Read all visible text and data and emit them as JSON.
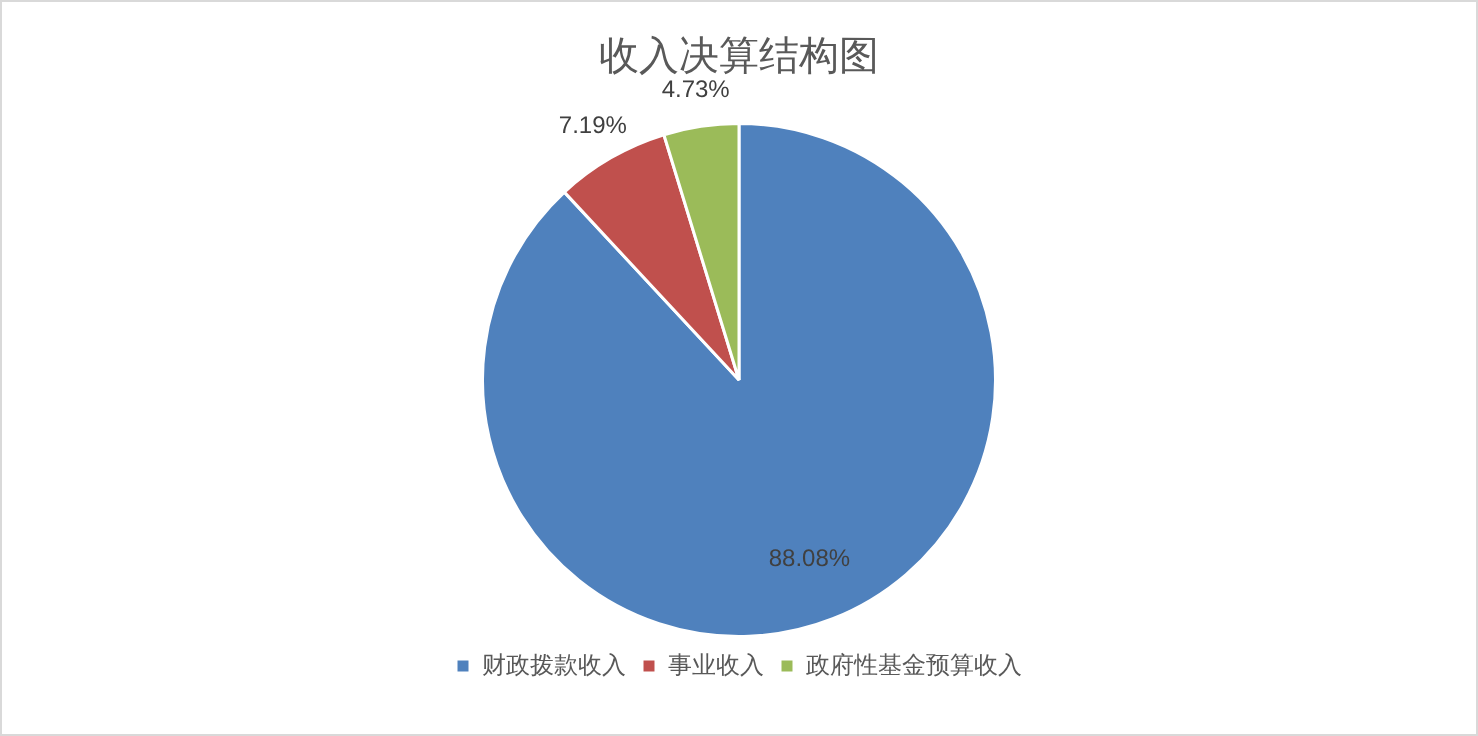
{
  "chart_data": {
    "type": "pie",
    "title": "收入决算结构图",
    "categories": [
      "财政拨款收入",
      "事业收入",
      "政府性基金预算收入"
    ],
    "values": [
      88.08,
      7.19,
      4.73
    ],
    "colors": [
      "#4f81bd",
      "#c0504d",
      "#9bbb59"
    ],
    "value_labels": [
      "88.08%",
      "7.19%",
      "4.73%"
    ],
    "legend": "bottom"
  }
}
